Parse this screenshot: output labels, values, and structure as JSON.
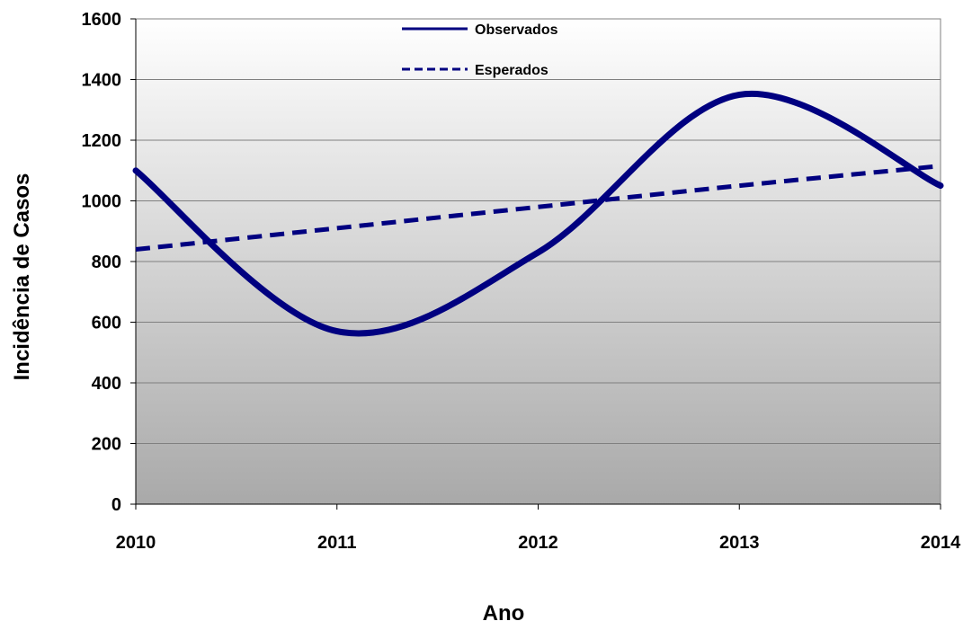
{
  "chart_data": {
    "type": "line",
    "title": "",
    "xlabel": "Ano",
    "ylabel": "Incidência de Casos",
    "x": [
      2010,
      2011,
      2012,
      2013,
      2014
    ],
    "xlim": [
      2010,
      2014
    ],
    "ylim": [
      0,
      1600
    ],
    "yticks": [
      0,
      200,
      400,
      600,
      800,
      1000,
      1200,
      1400,
      1600
    ],
    "grid": true,
    "legend_position": "top-center",
    "series": [
      {
        "name": "Observados",
        "style": "solid",
        "color": "#000080",
        "values": [
          1100,
          570,
          830,
          1350,
          1050
        ]
      },
      {
        "name": "Esperados",
        "style": "dashed",
        "color": "#000080",
        "values": [
          840,
          910,
          980,
          1050,
          1115
        ]
      }
    ]
  }
}
